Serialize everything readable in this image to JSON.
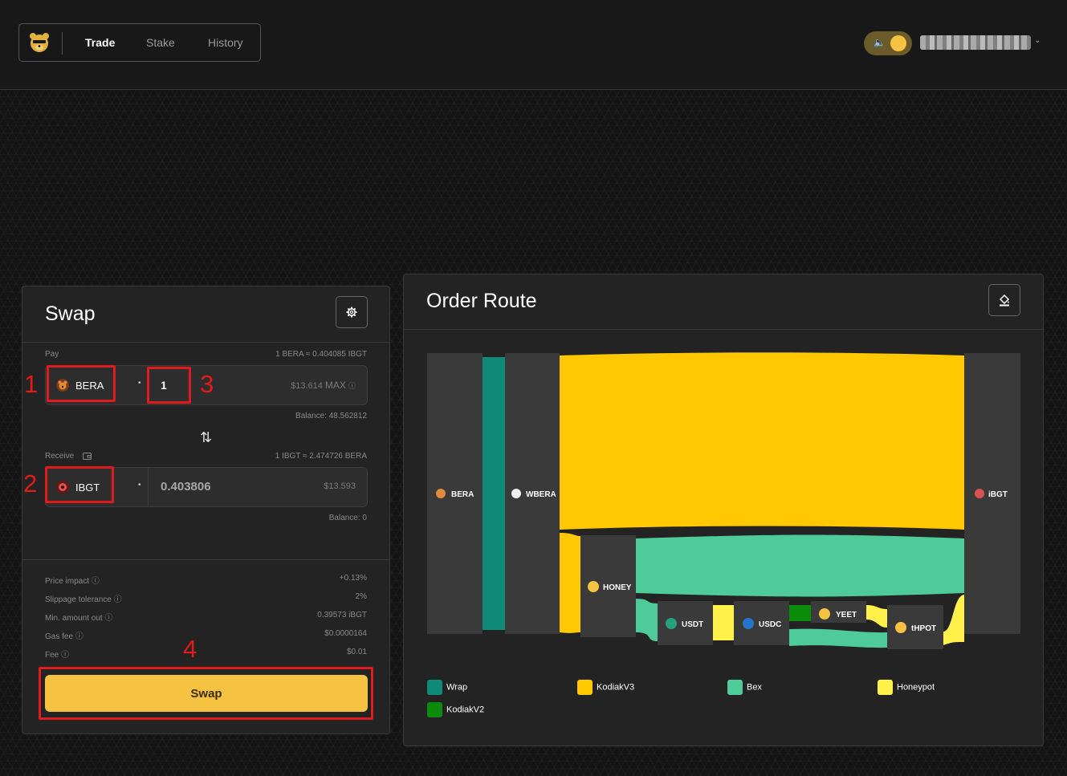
{
  "nav": {
    "items": [
      {
        "label": "Trade",
        "active": true
      },
      {
        "label": "Stake",
        "active": false
      },
      {
        "label": "History",
        "active": false
      }
    ]
  },
  "swap": {
    "title": "Swap",
    "pay": {
      "label": "Pay",
      "rate": "1 BERA ≈ 0.404085 IBGT",
      "token": "BERA",
      "amount": "1",
      "usd": "$13.614",
      "max": "MAX",
      "balance": "Balance: 48.562812"
    },
    "receive": {
      "label": "Receive",
      "rate": "1 IBGT ≈ 2.474726 BERA",
      "token": "IBGT",
      "amount": "0.403806",
      "usd": "$13.593",
      "balance": "Balance: 0"
    },
    "details": [
      {
        "label": "Price impact",
        "value": "+0.13%"
      },
      {
        "label": "Slippage tolerance",
        "value": "2%"
      },
      {
        "label": "Min. amount out",
        "value": "0.39573 iBGT"
      },
      {
        "label": "Gas fee",
        "value": "$0.0000164"
      },
      {
        "label": "Fee",
        "value": "$0.01"
      }
    ],
    "button": "Swap"
  },
  "annotations": [
    "1",
    "2",
    "3",
    "4"
  ],
  "route": {
    "title": "Order Route",
    "nodes": [
      "BERA",
      "WBERA",
      "iBGT",
      "HONEY",
      "USDT",
      "USDC",
      "YEET",
      "tHPOT"
    ],
    "legend": [
      {
        "label": "Wrap",
        "color": "#0f8a78"
      },
      {
        "label": "KodiakV3",
        "color": "#ffc800"
      },
      {
        "label": "Bex",
        "color": "#4ecb98"
      },
      {
        "label": "Honeypot",
        "color": "#fff04a"
      },
      {
        "label": "KodiakV2",
        "color": "#0a8c0a"
      }
    ]
  },
  "colors": {
    "accent": "#f5c242",
    "annotation": "#e11b1b"
  }
}
